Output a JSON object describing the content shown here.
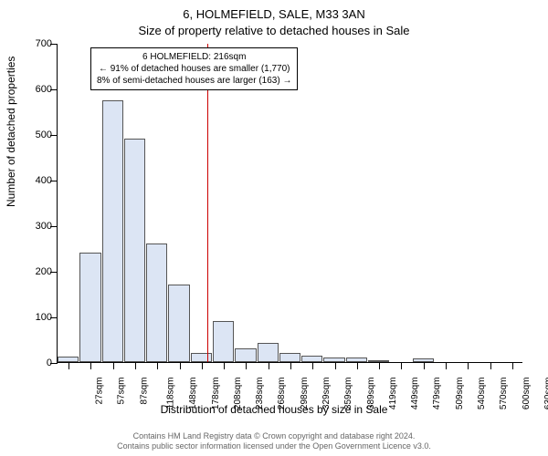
{
  "chart": {
    "type": "histogram",
    "title_main": "6, HOLMEFIELD, SALE, M33 3AN",
    "title_sub": "Size of property relative to detached houses in Sale",
    "y_axis_title": "Number of detached properties",
    "x_axis_title": "Distribution of detached houses by size in Sale",
    "background_color": "#ffffff",
    "bar_fill": "#dce5f4",
    "bar_stroke": "#555555",
    "marker_color": "#cc0000",
    "ylim": [
      0,
      700
    ],
    "ytick_step": 100,
    "yticks": [
      0,
      100,
      200,
      300,
      400,
      500,
      600,
      700
    ],
    "x_categories": [
      "27sqm",
      "57sqm",
      "87sqm",
      "118sqm",
      "148sqm",
      "178sqm",
      "208sqm",
      "238sqm",
      "268sqm",
      "298sqm",
      "329sqm",
      "359sqm",
      "389sqm",
      "419sqm",
      "449sqm",
      "479sqm",
      "509sqm",
      "540sqm",
      "570sqm",
      "600sqm",
      "630sqm"
    ],
    "values": [
      12,
      240,
      575,
      490,
      260,
      170,
      20,
      90,
      30,
      42,
      20,
      15,
      10,
      10,
      5,
      0,
      8,
      0,
      0,
      0,
      0
    ],
    "marker_value": 216,
    "annotation": {
      "line1": "6 HOLMEFIELD: 216sqm",
      "line2": "← 91% of detached houses are smaller (1,770)",
      "line3": "8% of semi-detached houses are larger (163) →"
    },
    "footer_line1": "Contains HM Land Registry data © Crown copyright and database right 2024.",
    "footer_line2": "Contains public sector information licensed under the Open Government Licence v3.0.",
    "title_fontsize": 13,
    "axis_label_fontsize": 12,
    "tick_fontsize": 11,
    "annotation_fontsize": 10,
    "footer_fontsize": 9
  }
}
